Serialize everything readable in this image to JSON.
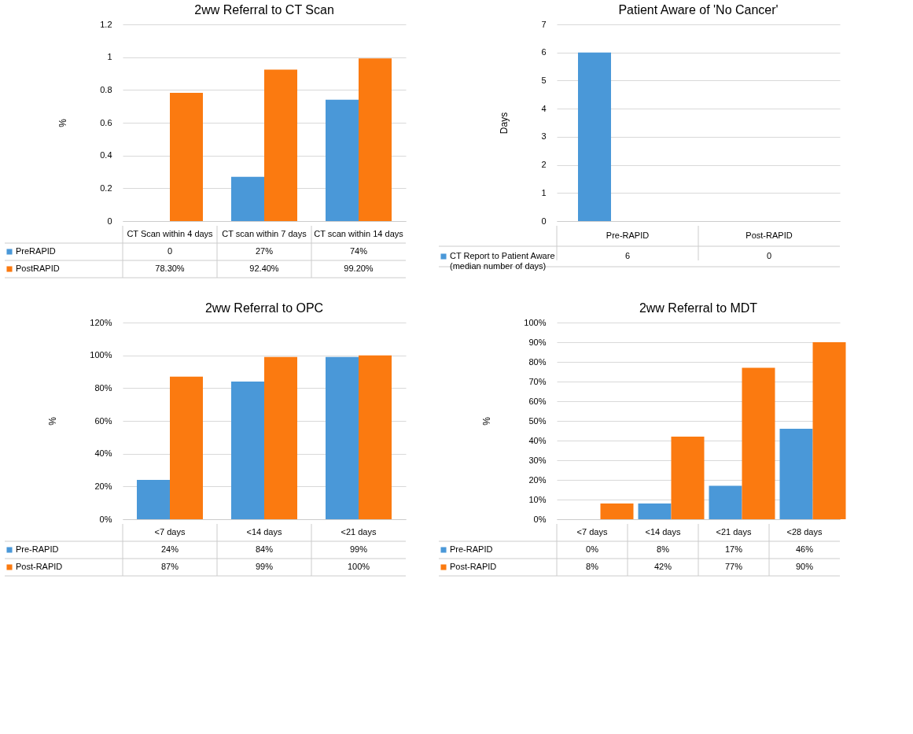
{
  "chart_data": [
    {
      "type": "bar",
      "title": "2ww Referral to CT Scan",
      "ylabel": "%",
      "categories": [
        "CT Scan within 4 days",
        "CT scan within 7 days",
        "CT scan within 14 days"
      ],
      "series": [
        {
          "name": "PreRAPID",
          "color": "#4a98d8",
          "values": [
            0,
            0.27,
            0.74
          ],
          "value_labels": [
            "0",
            "27%",
            "74%"
          ]
        },
        {
          "name": "PostRAPID",
          "color": "#fb7a10",
          "values": [
            0.783,
            0.924,
            0.992
          ],
          "value_labels": [
            "78.30%",
            "92.40%",
            "99.20%"
          ]
        }
      ],
      "ylim": [
        0,
        1.2
      ],
      "yticks": [
        0,
        0.2,
        0.4,
        0.6,
        0.8,
        1,
        1.2
      ],
      "grid": "y",
      "legend": "bottom"
    },
    {
      "type": "bar",
      "title": "Patient Aware of 'No Cancer'",
      "ylabel": "Days",
      "categories": [
        "Pre-RAPID",
        "Post-RAPID"
      ],
      "series": [
        {
          "name": "CT Report to Patient Aware (median number of days)",
          "color": "#4a98d8",
          "values": [
            6,
            0
          ],
          "value_labels": [
            "6",
            "0"
          ]
        }
      ],
      "ylim": [
        0,
        7
      ],
      "yticks": [
        0,
        1,
        2,
        3,
        4,
        5,
        6,
        7
      ],
      "grid": "y",
      "legend": "bottom"
    },
    {
      "type": "bar",
      "title": "2ww Referral to OPC",
      "ylabel": "%",
      "categories": [
        "<7 days",
        "<14 days",
        "<21 days"
      ],
      "series": [
        {
          "name": "Pre-RAPID",
          "color": "#4a98d8",
          "values": [
            24,
            84,
            99
          ],
          "value_labels": [
            "24%",
            "84%",
            "99%"
          ]
        },
        {
          "name": "Post-RAPID",
          "color": "#fb7a10",
          "values": [
            87,
            99,
            100
          ],
          "value_labels": [
            "87%",
            "99%",
            "100%"
          ]
        }
      ],
      "ylim": [
        0,
        120
      ],
      "yticks": [
        {
          "value": 0,
          "label": "0%"
        },
        {
          "value": 20,
          "label": "20%"
        },
        {
          "value": 40,
          "label": "40%"
        },
        {
          "value": 60,
          "label": "60%"
        },
        {
          "value": 80,
          "label": "80%"
        },
        {
          "value": 100,
          "label": "100%"
        },
        {
          "value": 120,
          "label": "120%"
        }
      ],
      "grid": "y",
      "legend": "bottom"
    },
    {
      "type": "bar",
      "title": "2ww Referral to MDT",
      "ylabel": "%",
      "categories": [
        "<7 days",
        "<14 days",
        "<21 days",
        "<28 days"
      ],
      "series": [
        {
          "name": "Pre-RAPID",
          "color": "#4a98d8",
          "values": [
            0,
            8,
            17,
            46
          ],
          "value_labels": [
            "0%",
            "8%",
            "17%",
            "46%"
          ]
        },
        {
          "name": "Post-RAPID",
          "color": "#fb7a10",
          "values": [
            8,
            42,
            77,
            90
          ],
          "value_labels": [
            "8%",
            "42%",
            "77%",
            "90%"
          ]
        }
      ],
      "ylim": [
        0,
        100
      ],
      "yticks": [
        {
          "value": 0,
          "label": "0%"
        },
        {
          "value": 10,
          "label": "10%"
        },
        {
          "value": 20,
          "label": "20%"
        },
        {
          "value": 30,
          "label": "30%"
        },
        {
          "value": 40,
          "label": "40%"
        },
        {
          "value": 50,
          "label": "50%"
        },
        {
          "value": 60,
          "label": "60%"
        },
        {
          "value": 70,
          "label": "70%"
        },
        {
          "value": 80,
          "label": "80%"
        },
        {
          "value": 90,
          "label": "90%"
        },
        {
          "value": 100,
          "label": "100%"
        }
      ],
      "grid": "y",
      "legend": "bottom"
    }
  ]
}
